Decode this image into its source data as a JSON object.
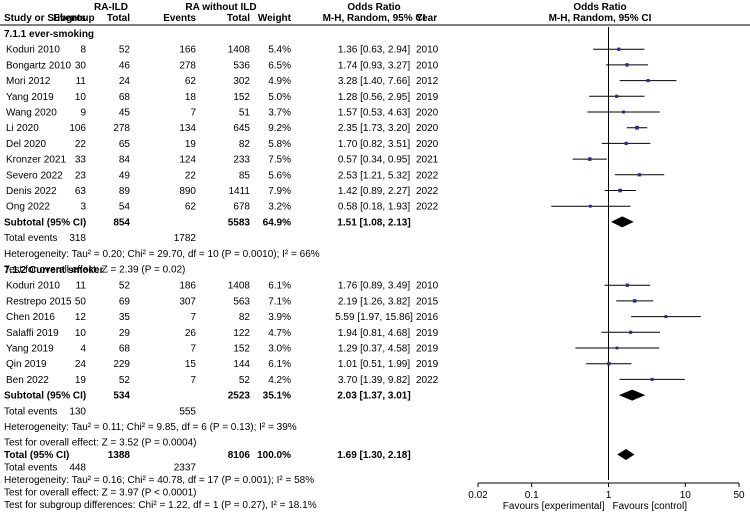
{
  "title": "Odds Ratio",
  "headers": {
    "group1": "RA-ILD",
    "group2": "RA without ILD",
    "study": "Study or Subgroup",
    "events1": "Events",
    "total1": "Total",
    "events2": "Events",
    "total2": "Total",
    "weight": "Weight",
    "or_col_title": "Odds Ratio",
    "or_col_sub": "M-H, Random, 95% CI",
    "year": "Year",
    "plot_title": "Odds Ratio",
    "plot_sub": "M-H, Random, 95% CI"
  },
  "colors": {
    "box": "#2b2b8f",
    "line": "#000000",
    "diamond": "#000000",
    "axis": "#000000",
    "separator": "#000000"
  },
  "chart_data": {
    "type": "forest",
    "scale": "log",
    "xlim": [
      0.02,
      50
    ],
    "null_value": 1,
    "ticks": [
      {
        "value": 0.02,
        "label": "0.02"
      },
      {
        "value": 0.1,
        "label": "0.1"
      },
      {
        "value": 1,
        "label": "1"
      },
      {
        "value": 10,
        "label": "10"
      },
      {
        "value": 50,
        "label": "50"
      }
    ],
    "favours_left": "Favours [experimental]",
    "favours_right": "Favours [control]",
    "subgroups": [
      {
        "name": "7.1.1 ever-smoking",
        "studies": [
          {
            "study": "Koduri 2010",
            "e1": "8",
            "n1": "52",
            "e2": "166",
            "n2": "1408",
            "weight": "5.4%",
            "ci": "1.36 [0.63, 2.94]",
            "year": "2010",
            "or": 1.36,
            "lo": 0.63,
            "hi": 2.94,
            "w": 5.4
          },
          {
            "study": "Bongartz 2010",
            "e1": "30",
            "n1": "46",
            "e2": "278",
            "n2": "536",
            "weight": "6.5%",
            "ci": "1.74 [0.93, 3.27]",
            "year": "2010",
            "or": 1.74,
            "lo": 0.93,
            "hi": 3.27,
            "w": 6.5
          },
          {
            "study": "Mori 2012",
            "e1": "11",
            "n1": "24",
            "e2": "62",
            "n2": "302",
            "weight": "4.9%",
            "ci": "3.28 [1.40, 7.66]",
            "year": "2012",
            "or": 3.28,
            "lo": 1.4,
            "hi": 7.66,
            "w": 4.9
          },
          {
            "study": "Yang 2019",
            "e1": "10",
            "n1": "68",
            "e2": "18",
            "n2": "152",
            "weight": "5.0%",
            "ci": "1.28 [0.56, 2.95]",
            "year": "2019",
            "or": 1.28,
            "lo": 0.56,
            "hi": 2.95,
            "w": 5.0
          },
          {
            "study": "Wang 2020",
            "e1": "9",
            "n1": "45",
            "e2": "7",
            "n2": "51",
            "weight": "3.7%",
            "ci": "1.57 [0.53, 4.63]",
            "year": "2020",
            "or": 1.57,
            "lo": 0.53,
            "hi": 4.63,
            "w": 3.7
          },
          {
            "study": "Li 2020",
            "e1": "106",
            "n1": "278",
            "e2": "134",
            "n2": "645",
            "weight": "9.2%",
            "ci": "2.35 [1.73, 3.20]",
            "year": "2020",
            "or": 2.35,
            "lo": 1.73,
            "hi": 3.2,
            "w": 9.2
          },
          {
            "study": "Del 2020",
            "e1": "22",
            "n1": "65",
            "e2": "19",
            "n2": "82",
            "weight": "5.8%",
            "ci": "1.70 [0.82, 3.51]",
            "year": "2020",
            "or": 1.7,
            "lo": 0.82,
            "hi": 3.51,
            "w": 5.8
          },
          {
            "study": "Kronzer 2021",
            "e1": "33",
            "n1": "84",
            "e2": "124",
            "n2": "233",
            "weight": "7.5%",
            "ci": "0.57 [0.34, 0.95]",
            "year": "2021",
            "or": 0.57,
            "lo": 0.34,
            "hi": 0.95,
            "w": 7.5
          },
          {
            "study": "Severo 2022",
            "e1": "23",
            "n1": "49",
            "e2": "22",
            "n2": "85",
            "weight": "5.6%",
            "ci": "2.53 [1.21, 5.32]",
            "year": "2022",
            "or": 2.53,
            "lo": 1.21,
            "hi": 5.32,
            "w": 5.6
          },
          {
            "study": "Denis 2022",
            "e1": "63",
            "n1": "89",
            "e2": "890",
            "n2": "1411",
            "weight": "7.9%",
            "ci": "1.42 [0.89, 2.27]",
            "year": "2022",
            "or": 1.42,
            "lo": 0.89,
            "hi": 2.27,
            "w": 7.9
          },
          {
            "study": "Ong 2022",
            "e1": "3",
            "n1": "54",
            "e2": "62",
            "n2": "678",
            "weight": "3.2%",
            "ci": "0.58 [0.18, 1.93]",
            "year": "2022",
            "or": 0.58,
            "lo": 0.18,
            "hi": 1.93,
            "w": 3.2
          }
        ],
        "subtotal": {
          "label": "Subtotal (95% CI)",
          "n1": "854",
          "n2": "5583",
          "weight": "64.9%",
          "ci": "1.51 [1.08, 2.13]",
          "or": 1.51,
          "lo": 1.08,
          "hi": 2.13
        },
        "total_events": {
          "label": "Total events",
          "e1": "318",
          "e2": "1782"
        },
        "heterogeneity": "Heterogeneity: Tau² = 0.20; Chi² = 29.70, df = 10 (P = 0.0010); I² = 66%",
        "overall": "Test for overall effect: Z = 2.39 (P = 0.02)"
      },
      {
        "name": "7.1.2 Current smoker",
        "studies": [
          {
            "study": "Koduri 2010",
            "e1": "11",
            "n1": "52",
            "e2": "186",
            "n2": "1408",
            "weight": "6.1%",
            "ci": "1.76 [0.89, 3.49]",
            "year": "2010",
            "or": 1.76,
            "lo": 0.89,
            "hi": 3.49,
            "w": 6.1
          },
          {
            "study": "Restrepo 2015",
            "e1": "50",
            "n1": "69",
            "e2": "307",
            "n2": "563",
            "weight": "7.1%",
            "ci": "2.19 [1.26, 3.82]",
            "year": "2015",
            "or": 2.19,
            "lo": 1.26,
            "hi": 3.82,
            "w": 7.1
          },
          {
            "study": "Chen 2016",
            "e1": "12",
            "n1": "35",
            "e2": "7",
            "n2": "82",
            "weight": "3.9%",
            "ci": "5.59 [1.97, 15.86]",
            "year": "2016",
            "or": 5.59,
            "lo": 1.97,
            "hi": 15.86,
            "w": 3.9
          },
          {
            "study": "Salaffi 2019",
            "e1": "10",
            "n1": "29",
            "e2": "26",
            "n2": "122",
            "weight": "4.7%",
            "ci": "1.94 [0.81, 4.68]",
            "year": "2019",
            "or": 1.94,
            "lo": 0.81,
            "hi": 4.68,
            "w": 4.7
          },
          {
            "study": "Yang 2019",
            "e1": "4",
            "n1": "68",
            "e2": "7",
            "n2": "152",
            "weight": "3.0%",
            "ci": "1.29 [0.37, 4.58]",
            "year": "2019",
            "or": 1.29,
            "lo": 0.37,
            "hi": 4.58,
            "w": 3.0
          },
          {
            "study": "Qin 2019",
            "e1": "24",
            "n1": "229",
            "e2": "15",
            "n2": "144",
            "weight": "6.1%",
            "ci": "1.01 [0.51, 1.99]",
            "year": "2019",
            "or": 1.01,
            "lo": 0.51,
            "hi": 1.99,
            "w": 6.1
          },
          {
            "study": "Ben 2022",
            "e1": "19",
            "n1": "52",
            "e2": "7",
            "n2": "52",
            "weight": "4.2%",
            "ci": "3.70 [1.39, 9.82]",
            "year": "2022",
            "or": 3.7,
            "lo": 1.39,
            "hi": 9.82,
            "w": 4.2
          }
        ],
        "subtotal": {
          "label": "Subtotal (95% CI)",
          "n1": "534",
          "n2": "2523",
          "weight": "35.1%",
          "ci": "2.03 [1.37, 3.01]",
          "or": 2.03,
          "lo": 1.37,
          "hi": 3.01
        },
        "total_events": {
          "label": "Total events",
          "e1": "130",
          "e2": "555"
        },
        "heterogeneity": "Heterogeneity: Tau² = 0.11; Chi² = 9.85, df = 6 (P = 0.13); I² = 39%",
        "overall": "Test for overall effect: Z = 3.52 (P = 0.0004)"
      }
    ],
    "total": {
      "label": "Total (95% CI)",
      "n1": "1388",
      "n2": "8106",
      "weight": "100.0%",
      "ci": "1.69 [1.30, 2.18]",
      "or": 1.69,
      "lo": 1.3,
      "hi": 2.18,
      "events_label": "Total events",
      "e1": "448",
      "e2": "2337",
      "heterogeneity": "Heterogeneity: Tau² = 0.16; Chi² = 40.78, df = 17 (P = 0.001); I² = 58%",
      "overall": "Test for overall effect: Z = 3.97 (P < 0.0001)",
      "subgroup_diff": "Test for subgroup differences: Chi² = 1.22, df = 1 (P = 0.27), I² = 18.1%"
    }
  }
}
